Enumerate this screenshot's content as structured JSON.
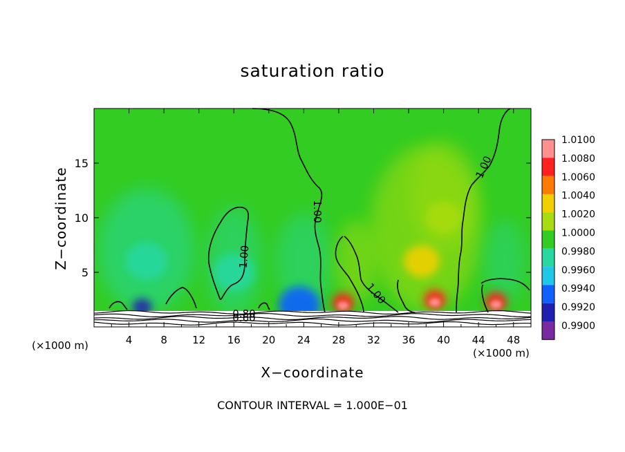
{
  "title": "saturation ratio",
  "xlabel": "X−coordinate",
  "ylabel": "Z−coordinate",
  "x_unit_left": "(×1000 m)",
  "x_unit_right": "(×1000 m)",
  "footnote": "CONTOUR INTERVAL = 1.000E−01",
  "colors": {
    "background_field": "#33cc22",
    "ground_band": "#ffffff",
    "contour_line": "#000000"
  },
  "chart_data": {
    "type": "heatmap",
    "title": "saturation ratio",
    "xlabel": "X−coordinate",
    "ylabel": "Z−coordinate",
    "xlim": [
      0,
      50
    ],
    "ylim": [
      0,
      20
    ],
    "x_ticks": [
      4,
      8,
      12,
      16,
      20,
      24,
      28,
      32,
      36,
      40,
      44,
      48
    ],
    "y_ticks": [
      5,
      10,
      15
    ],
    "colorbar": {
      "levels": [
        0.99,
        0.992,
        0.994,
        0.996,
        0.998,
        1.0,
        1.002,
        1.004,
        1.006,
        1.008,
        1.01
      ],
      "labels": [
        "1.0100",
        "1.0080",
        "1.0060",
        "1.0040",
        "1.0020",
        "1.0000",
        "0.9980",
        "0.9960",
        "0.9940",
        "0.9920",
        "0.9900"
      ],
      "colors": [
        "#7a2aa0",
        "#2020b0",
        "#1060ff",
        "#20c8e8",
        "#28d8a0",
        "#33cc22",
        "#a8dc10",
        "#f0d000",
        "#ff7a00",
        "#ff2020",
        "#ff9090"
      ]
    },
    "contour_interval": "1.000E−01",
    "contour_labels": [
      "1.00",
      "1.00",
      "1.00",
      "1.00",
      "0.80",
      "0.60"
    ],
    "features": [
      {
        "kind": "max",
        "x": 28.5,
        "z": 2.2,
        "value": 1.008
      },
      {
        "kind": "max",
        "x": 39,
        "z": 2.5,
        "value": 1.009
      },
      {
        "kind": "max",
        "x": 46,
        "z": 2.3,
        "value": 1.008
      },
      {
        "kind": "max",
        "x": 37.5,
        "z": 6,
        "value": 1.004
      },
      {
        "kind": "max",
        "x": 40,
        "z": 10,
        "value": 1.002
      },
      {
        "kind": "min",
        "x": 5.5,
        "z": 1.8,
        "value": 0.993
      },
      {
        "kind": "min",
        "x": 23.5,
        "z": 2,
        "value": 0.995
      },
      {
        "kind": "min",
        "x": 6,
        "z": 6,
        "value": 0.998
      },
      {
        "kind": "min",
        "x": 16,
        "z": 5,
        "value": 0.998
      }
    ]
  }
}
